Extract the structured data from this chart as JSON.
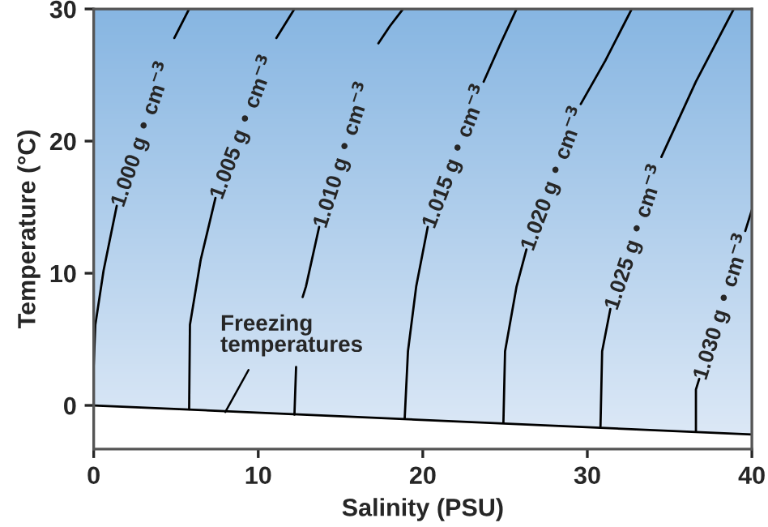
{
  "chart_data": {
    "type": "line",
    "xlabel": "Salinity (PSU)",
    "ylabel": "Temperature (°C)",
    "xlim": [
      0,
      40
    ],
    "ylim": [
      -3.3,
      30
    ],
    "xticks": [
      0,
      10,
      20,
      30,
      40
    ],
    "yticks": [
      0,
      10,
      20,
      30
    ],
    "grid": false,
    "legend": false,
    "marker": "none",
    "line_style": "solid",
    "series": [
      {
        "name": "1.000 g • cm$^{−3}$",
        "color": "#000000",
        "x": [
          0,
          0,
          0.1,
          0.6,
          1.4,
          null,
          4.9,
          5.8
        ],
        "values": [
          0,
          3,
          6.1,
          10.2,
          15.1,
          null,
          27.8,
          30
        ]
      },
      {
        "name": "1.005 g • cm$^{−3}$",
        "color": "#000000",
        "x": [
          5.8,
          5.85,
          6.5,
          7.4,
          null,
          11.1,
          12.2
        ],
        "values": [
          -0.3,
          6.1,
          11,
          15.7,
          null,
          27.8,
          30
        ]
      },
      {
        "name": "1.010 g • cm$^{−3}$",
        "color": "#000000",
        "x": [
          12.2,
          12.3,
          null,
          12.7,
          12.9,
          13.7,
          null,
          17.3,
          18.0,
          18.8
        ],
        "values": [
          -0.7,
          2.9,
          null,
          8.2,
          9.0,
          13.5,
          null,
          27.4,
          28.7,
          30
        ]
      },
      {
        "name": "1.015 g • cm$^{−3}$",
        "color": "#000000",
        "x": [
          18.9,
          19.1,
          19.6,
          20.3,
          null,
          23.7,
          24.7,
          25.7
        ],
        "values": [
          -1.0,
          4.1,
          9.0,
          13.5,
          null,
          24.5,
          27.3,
          30
        ]
      },
      {
        "name": "1.020 g • cm$^{−3}$",
        "color": "#000000",
        "x": [
          24.9,
          25.0,
          25.7,
          26.3,
          null,
          29.6,
          31.1,
          32.7
        ],
        "values": [
          -1.3,
          4.1,
          9.0,
          11.8,
          null,
          22.8,
          26.1,
          30
        ]
      },
      {
        "name": "1.025 g • cm$^{−3}$",
        "color": "#000000",
        "x": [
          30.8,
          30.9,
          31.4,
          null,
          34.5,
          36.6,
          38.9
        ],
        "values": [
          -1.6,
          4.1,
          7.3,
          null,
          18.8,
          24.5,
          30
        ]
      },
      {
        "name": "1.030 g • cm$^{−3}$",
        "color": "#000000",
        "x": [
          36.6,
          36.6,
          36.8,
          null,
          39.6,
          40
        ],
        "values": [
          -2.0,
          1.2,
          2.0,
          null,
          13.2,
          14.8
        ]
      },
      {
        "color": "#000000",
        "x": [
          0,
          40
        ],
        "values": [
          0,
          -2.2
        ]
      }
    ],
    "annotations": [
      {
        "text": "Freezing\ntemperatures",
        "x": 8,
        "y": -0.5
      }
    ]
  }
}
